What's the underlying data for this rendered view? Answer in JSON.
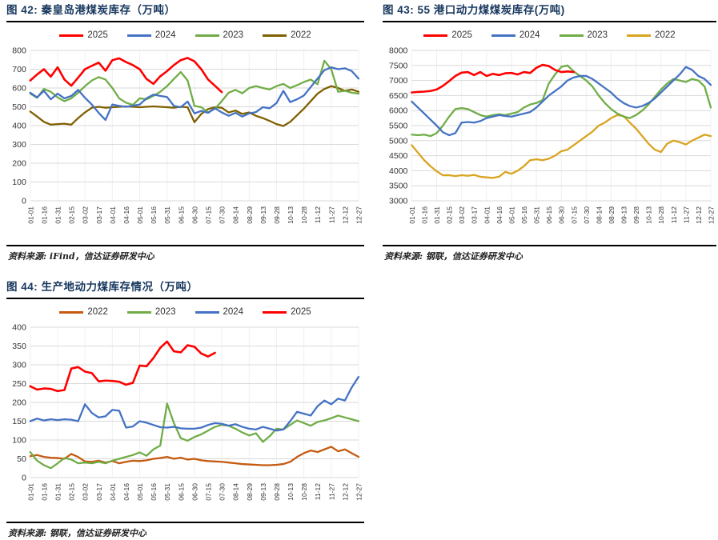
{
  "page": {
    "background": "#FFFFFF"
  },
  "chart_data": [
    {
      "id": "fig42",
      "type": "line",
      "title": "图 42:  秦皇岛港煤炭库存（万吨）",
      "source": "资料来源: iFind，信达证券研发中心",
      "ylim": [
        0,
        800
      ],
      "ystep": 100,
      "grid": true,
      "legend_position": "top",
      "legend_order": [
        "2025",
        "2024",
        "2023",
        "2022"
      ],
      "categories": [
        "01-01",
        "01-16",
        "01-31",
        "02-15",
        "03-02",
        "03-17",
        "04-01",
        "04-16",
        "05-01",
        "05-16",
        "05-31",
        "06-15",
        "06-30",
        "07-15",
        "07-30",
        "08-14",
        "08-29",
        "09-13",
        "09-28",
        "10-13",
        "10-28",
        "11-12",
        "11-27",
        "12-12",
        "12-27"
      ],
      "samples_per_tick": 2,
      "series": [
        {
          "name": "2022",
          "color": "#7F6000",
          "values": [
            475,
            448,
            420,
            405,
            408,
            410,
            405,
            440,
            470,
            495,
            500,
            495,
            498,
            500,
            502,
            500,
            498,
            500,
            502,
            500,
            498,
            495,
            500,
            498,
            418,
            462,
            488,
            498,
            495,
            470,
            480,
            462,
            470,
            452,
            440,
            425,
            408,
            398,
            420,
            455,
            490,
            530,
            570,
            595,
            610,
            600,
            585,
            592,
            580
          ]
        },
        {
          "name": "2023",
          "color": "#70AD47",
          "values": [
            570,
            548,
            595,
            580,
            550,
            530,
            545,
            575,
            610,
            640,
            658,
            645,
            600,
            545,
            522,
            510,
            545,
            540,
            558,
            580,
            610,
            648,
            685,
            640,
            505,
            498,
            470,
            490,
            530,
            575,
            590,
            572,
            600,
            610,
            600,
            592,
            610,
            622,
            600,
            615,
            632,
            645,
            620,
            745,
            700,
            580,
            585,
            575,
            570
          ]
        },
        {
          "name": "2024",
          "color": "#4472C4",
          "values": [
            575,
            550,
            585,
            540,
            570,
            545,
            558,
            590,
            548,
            512,
            468,
            430,
            512,
            505,
            500,
            506,
            512,
            545,
            565,
            558,
            552,
            505,
            498,
            528,
            465,
            478,
            468,
            492,
            470,
            452,
            468,
            448,
            465,
            472,
            498,
            492,
            520,
            585,
            525,
            540,
            560,
            605,
            650,
            695,
            710,
            700,
            705,
            690,
            650
          ]
        },
        {
          "name": "2025",
          "color": "#FF0000",
          "values": [
            640,
            672,
            700,
            660,
            710,
            645,
            612,
            655,
            700,
            718,
            735,
            692,
            748,
            758,
            738,
            722,
            700,
            648,
            622,
            662,
            690,
            722,
            748,
            760,
            742,
            700,
            645,
            612,
            578
          ]
        }
      ]
    },
    {
      "id": "fig43",
      "type": "line",
      "title": "图 43:  55 港口动力煤煤炭库存(万吨)",
      "source": "资料来源: 钢联，信达证券研发中心",
      "ylim": [
        3000,
        8000
      ],
      "ystep": 500,
      "grid": true,
      "legend_position": "top",
      "legend_order": [
        "2025",
        "2024",
        "2023",
        "2022"
      ],
      "categories": [
        "01-01",
        "01-16",
        "01-31",
        "02-15",
        "03-02",
        "03-17",
        "04-01",
        "04-16",
        "05-01",
        "05-16",
        "05-31",
        "06-15",
        "06-30",
        "07-15",
        "07-30",
        "08-14",
        "08-29",
        "09-13",
        "09-28",
        "10-13",
        "10-28",
        "11-12",
        "11-27",
        "12-12",
        "12-27"
      ],
      "samples_per_tick": 2,
      "series": [
        {
          "name": "2022",
          "color": "#D9A420",
          "values": [
            4850,
            4600,
            4350,
            4150,
            3980,
            3850,
            3850,
            3820,
            3850,
            3830,
            3860,
            3800,
            3780,
            3760,
            3800,
            3960,
            3900,
            4000,
            4150,
            4350,
            4380,
            4350,
            4400,
            4500,
            4650,
            4700,
            4850,
            5000,
            5150,
            5300,
            5500,
            5600,
            5750,
            5850,
            5820,
            5600,
            5400,
            5150,
            4900,
            4700,
            4620,
            4900,
            5000,
            4950,
            4870,
            5000,
            5100,
            5200,
            5150
          ]
        },
        {
          "name": "2023",
          "color": "#70AD47",
          "values": [
            5200,
            5180,
            5200,
            5150,
            5250,
            5500,
            5800,
            6050,
            6080,
            6050,
            5950,
            5850,
            5800,
            5850,
            5880,
            5850,
            5900,
            5950,
            6100,
            6200,
            6250,
            6350,
            6900,
            7200,
            7450,
            7500,
            7300,
            7150,
            7000,
            6800,
            6500,
            6250,
            6050,
            5900,
            5800,
            5750,
            5850,
            6000,
            6200,
            6450,
            6700,
            6900,
            7050,
            7000,
            6950,
            7050,
            7000,
            6800,
            6100
          ]
        },
        {
          "name": "2024",
          "color": "#4472C4",
          "values": [
            6300,
            6100,
            5900,
            5700,
            5500,
            5280,
            5180,
            5250,
            5600,
            5620,
            5600,
            5650,
            5750,
            5800,
            5850,
            5820,
            5800,
            5850,
            5900,
            5950,
            6100,
            6300,
            6500,
            6650,
            6800,
            7000,
            7100,
            7150,
            7150,
            7050,
            6900,
            6750,
            6600,
            6400,
            6250,
            6150,
            6100,
            6150,
            6250,
            6400,
            6600,
            6800,
            7000,
            7200,
            7450,
            7350,
            7150,
            7050,
            6850
          ]
        },
        {
          "name": "2025",
          "color": "#FF0000",
          "values": [
            6600,
            6620,
            6630,
            6650,
            6700,
            6820,
            6980,
            7150,
            7260,
            7280,
            7180,
            7280,
            7150,
            7220,
            7180,
            7240,
            7250,
            7200,
            7280,
            7250,
            7420,
            7520,
            7480,
            7350,
            7280,
            7300,
            7280
          ]
        }
      ]
    },
    {
      "id": "fig44",
      "type": "line",
      "title": "图 44:  生产地动力煤库存情况（万吨）",
      "source": "资料来源: 钢联，信达证券研发中心",
      "ylim": [
        0,
        400
      ],
      "ystep": 50,
      "grid": true,
      "legend_position": "top",
      "legend_order": [
        "2022",
        "2023",
        "2024",
        "2025"
      ],
      "categories": [
        "01-01",
        "01-16",
        "01-31",
        "02-15",
        "03-02",
        "03-17",
        "04-01",
        "04-16",
        "05-01",
        "05-16",
        "05-31",
        "06-15",
        "06-30",
        "07-15",
        "07-30",
        "08-14",
        "08-29",
        "09-13",
        "09-28",
        "10-13",
        "10-28",
        "11-12",
        "11-27",
        "12-12",
        "12-27"
      ],
      "samples_per_tick": 2,
      "series": [
        {
          "name": "2022",
          "color": "#C55A11",
          "values": [
            57,
            60,
            55,
            53,
            52,
            50,
            63,
            55,
            43,
            42,
            45,
            40,
            44,
            38,
            42,
            45,
            44,
            46,
            50,
            52,
            55,
            50,
            53,
            48,
            50,
            46,
            44,
            43,
            42,
            40,
            38,
            36,
            35,
            34,
            33,
            33,
            34,
            36,
            42,
            55,
            65,
            72,
            68,
            75,
            82,
            70,
            75,
            65,
            55
          ]
        },
        {
          "name": "2023",
          "color": "#70AD47",
          "values": [
            68,
            45,
            33,
            25,
            38,
            52,
            48,
            38,
            40,
            38,
            42,
            38,
            45,
            50,
            55,
            60,
            67,
            58,
            75,
            85,
            197,
            145,
            105,
            98,
            108,
            115,
            125,
            135,
            140,
            138,
            130,
            120,
            112,
            118,
            95,
            110,
            130,
            128,
            140,
            152,
            145,
            138,
            148,
            152,
            158,
            165,
            160,
            155,
            150
          ]
        },
        {
          "name": "2024",
          "color": "#4472C4",
          "values": [
            150,
            157,
            152,
            155,
            153,
            155,
            154,
            150,
            195,
            172,
            160,
            163,
            180,
            178,
            133,
            136,
            150,
            146,
            140,
            134,
            133,
            135,
            131,
            130,
            130,
            133,
            140,
            145,
            143,
            138,
            142,
            135,
            130,
            128,
            135,
            130,
            125,
            128,
            150,
            175,
            170,
            165,
            190,
            205,
            195,
            210,
            205,
            240,
            268
          ]
        },
        {
          "name": "2025",
          "color": "#FF0000",
          "values": [
            243,
            234,
            237,
            236,
            230,
            233,
            290,
            294,
            282,
            278,
            256,
            258,
            257,
            255,
            247,
            252,
            298,
            296,
            318,
            345,
            362,
            336,
            333,
            352,
            348,
            330,
            322,
            332
          ]
        }
      ]
    }
  ]
}
